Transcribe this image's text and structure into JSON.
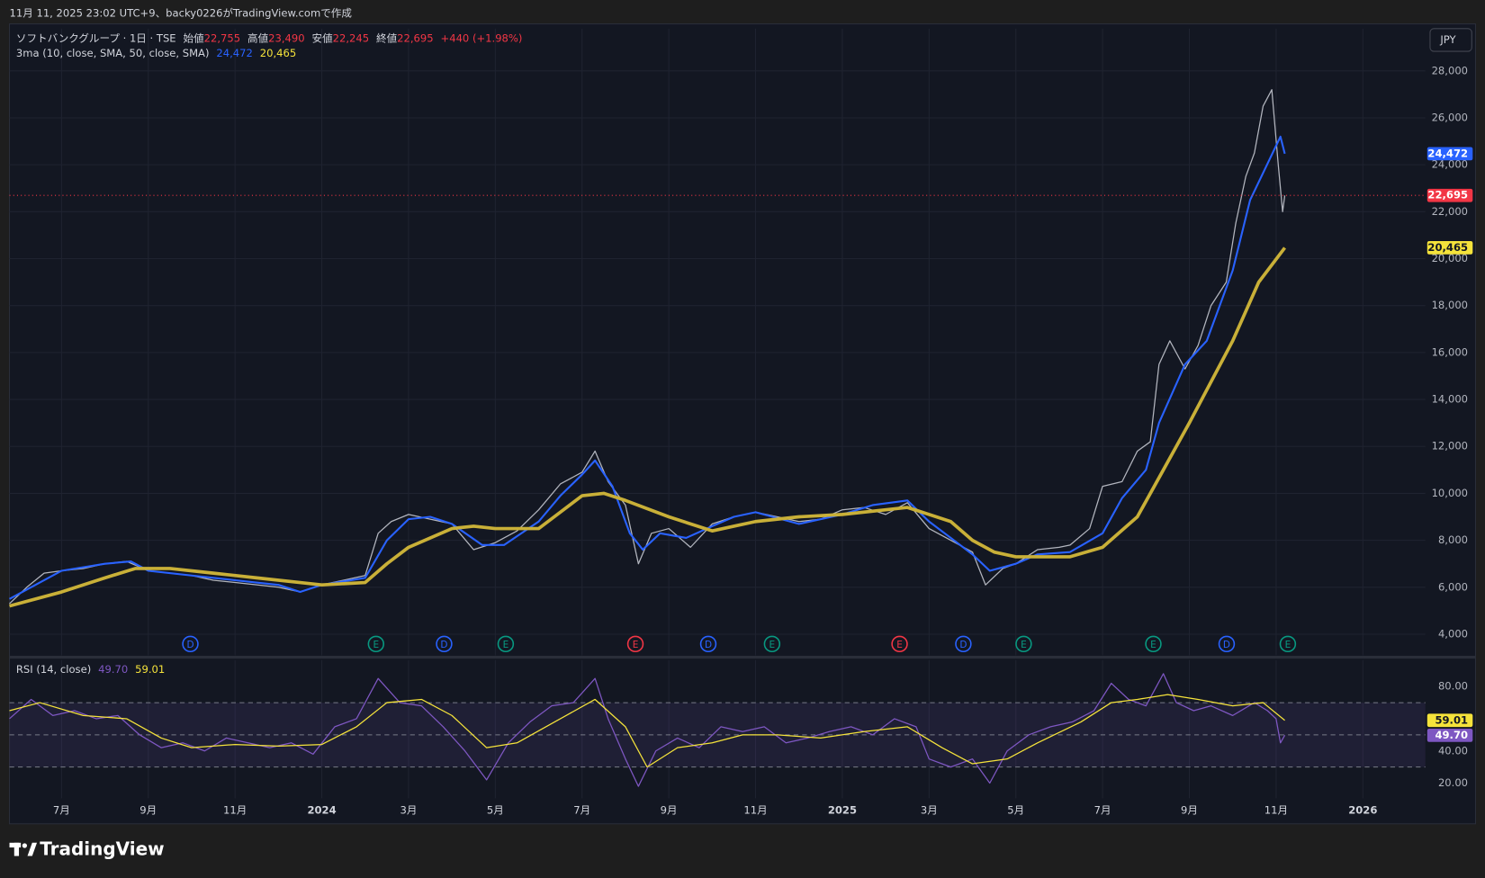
{
  "header": {
    "created": "11月 11, 2025 23:02 UTC+9、backy0226がTradingView.comで作成",
    "currency": "JPY",
    "brand": "TradingView"
  },
  "chart_data": [
    {
      "type": "line",
      "title": "ソフトバンクグループ · 1日 · TSE",
      "ohlc": [
        {
          "label": "始値",
          "value": "22,755"
        },
        {
          "label": "高値",
          "value": "23,490"
        },
        {
          "label": "安値",
          "value": "22,245"
        },
        {
          "label": "終値",
          "value": "22,695"
        }
      ],
      "change": "+440 (+1.98%)",
      "indicator": "3ma (10, close, SMA, 50, close, SMA)",
      "xlim": [
        4.8,
        37.44
      ],
      "xticks": [
        {
          "value": 6,
          "label": "7月"
        },
        {
          "value": 8,
          "label": "9月"
        },
        {
          "value": 10,
          "label": "11月"
        },
        {
          "value": 12,
          "label": "2024"
        },
        {
          "value": 14,
          "label": "3月"
        },
        {
          "value": 16,
          "label": "5月"
        },
        {
          "value": 18,
          "label": "7月"
        },
        {
          "value": 20,
          "label": "9月"
        },
        {
          "value": 22,
          "label": "11月"
        },
        {
          "value": 24,
          "label": "2025"
        },
        {
          "value": 26,
          "label": "3月"
        },
        {
          "value": 28,
          "label": "5月"
        },
        {
          "value": 30,
          "label": "7月"
        },
        {
          "value": 32,
          "label": "9月"
        },
        {
          "value": 34,
          "label": "11月"
        },
        {
          "value": 36,
          "label": "2026"
        }
      ],
      "ylim": [
        3100,
        29800
      ],
      "yticks": [
        {
          "value": 4000,
          "label": "4,000"
        },
        {
          "value": 6000,
          "label": "6,000"
        },
        {
          "value": 8000,
          "label": "8,000"
        },
        {
          "value": 10000,
          "label": "10,000"
        },
        {
          "value": 12000,
          "label": "12,000"
        },
        {
          "value": 14000,
          "label": "14,000"
        },
        {
          "value": 16000,
          "label": "16,000"
        },
        {
          "value": 18000,
          "label": "18,000"
        },
        {
          "value": 20000,
          "label": "20,000"
        },
        {
          "value": 22000,
          "label": "22,000"
        },
        {
          "value": 24000,
          "label": "24,000"
        },
        {
          "value": 26000,
          "label": "26,000"
        },
        {
          "value": 28000,
          "label": "28,000"
        }
      ],
      "grid": true,
      "series": [
        {
          "color": "#b2b5be",
          "label_color": "#f23645",
          "line_width": 1.2,
          "last_label": "22,695",
          "price_line": true,
          "x": [
            4.8,
            5.2,
            5.6,
            6.0,
            6.5,
            7.0,
            7.5,
            8.0,
            8.5,
            9.0,
            9.5,
            10.0,
            10.5,
            11.0,
            11.5,
            12.0,
            12.5,
            13.0,
            13.3,
            13.6,
            14.0,
            14.5,
            15.0,
            15.5,
            16.0,
            16.5,
            17.0,
            17.5,
            18.0,
            18.3,
            18.6,
            19.0,
            19.3,
            19.6,
            20.0,
            20.5,
            21.0,
            21.5,
            22.0,
            22.5,
            23.0,
            23.5,
            24.0,
            24.5,
            25.0,
            25.5,
            26.0,
            26.5,
            27.0,
            27.3,
            27.7,
            28.0,
            28.5,
            29.0,
            29.25,
            29.7,
            30.0,
            30.45,
            30.8,
            31.1,
            31.3,
            31.55,
            31.9,
            32.2,
            32.5,
            32.85,
            33.07,
            33.3,
            33.5,
            33.7,
            33.9,
            34.05,
            34.15,
            34.2
          ],
          "values": [
            5300,
            6000,
            6600,
            6700,
            6800,
            7000,
            7100,
            6700,
            6600,
            6500,
            6300,
            6200,
            6100,
            6000,
            5800,
            6100,
            6300,
            6500,
            8300,
            8800,
            9100,
            8900,
            8700,
            7600,
            7900,
            8400,
            9300,
            10400,
            10900,
            11800,
            10500,
            9500,
            7000,
            8300,
            8500,
            7700,
            8700,
            9000,
            9200,
            9000,
            8800,
            8900,
            9300,
            9400,
            9100,
            9600,
            8500,
            8000,
            7500,
            6100,
            6800,
            7000,
            7600,
            7700,
            7800,
            8500,
            10300,
            10500,
            11800,
            12200,
            15500,
            16500,
            15300,
            16300,
            18000,
            19000,
            21500,
            23500,
            24500,
            26500,
            27200,
            24000,
            22000,
            22695
          ]
        },
        {
          "color": "#2962ff",
          "label_color": "#2962ff",
          "line_width": 2,
          "last_label": "24,472",
          "x": [
            4.8,
            6,
            7,
            7.6,
            8,
            9,
            10,
            11,
            11.5,
            12,
            13,
            13.5,
            14,
            14.5,
            15,
            15.7,
            16.2,
            17,
            17.5,
            18,
            18.3,
            18.7,
            19.1,
            19.4,
            19.8,
            20.4,
            21,
            21.5,
            22,
            23,
            24,
            24.7,
            25.5,
            26,
            26.5,
            27,
            27.4,
            28,
            28.5,
            29.25,
            30,
            30.45,
            31,
            31.3,
            31.9,
            32.4,
            33,
            33.4,
            34.1,
            34.2
          ],
          "values": [
            5500,
            6700,
            7000,
            7100,
            6700,
            6500,
            6300,
            6100,
            5800,
            6100,
            6400,
            8000,
            8900,
            9000,
            8700,
            7800,
            7800,
            8800,
            9900,
            10800,
            11400,
            10300,
            8300,
            7600,
            8300,
            8100,
            8600,
            9000,
            9200,
            8700,
            9100,
            9500,
            9700,
            8800,
            8100,
            7400,
            6700,
            7000,
            7400,
            7500,
            8300,
            9800,
            11000,
            13000,
            15500,
            16500,
            19500,
            22500,
            25200,
            24472
          ]
        },
        {
          "color": "#c9b038",
          "label_color": "#f5e33b",
          "line_width": 3.5,
          "last_label": "20,465",
          "x": [
            4.8,
            6,
            7,
            7.7,
            8.5,
            9.5,
            10.5,
            11.5,
            12,
            13,
            13.5,
            14,
            15,
            15.5,
            16,
            17,
            17.5,
            18,
            18.5,
            19,
            20,
            21,
            21.5,
            22,
            23,
            24,
            25,
            25.5,
            26,
            26.5,
            27,
            27.5,
            28,
            29.25,
            30,
            30.8,
            31.4,
            32,
            33,
            33.6,
            34.2
          ],
          "values": [
            5200,
            5800,
            6400,
            6800,
            6800,
            6600,
            6400,
            6200,
            6100,
            6200,
            7000,
            7700,
            8500,
            8600,
            8500,
            8500,
            9200,
            9900,
            10000,
            9700,
            9000,
            8400,
            8600,
            8800,
            9000,
            9100,
            9300,
            9400,
            9100,
            8800,
            8000,
            7500,
            7300,
            7300,
            7700,
            9000,
            11000,
            13000,
            16500,
            19000,
            20465
          ]
        }
      ],
      "events": [
        {
          "x": 8.97,
          "label": "D",
          "color": "#2962ff"
        },
        {
          "x": 13.25,
          "label": "E",
          "color": "#089981"
        },
        {
          "x": 14.82,
          "label": "D",
          "color": "#2962ff"
        },
        {
          "x": 16.24,
          "label": "E",
          "color": "#089981"
        },
        {
          "x": 19.23,
          "label": "E",
          "color": "#f23645"
        },
        {
          "x": 20.91,
          "label": "D",
          "color": "#2962ff"
        },
        {
          "x": 22.38,
          "label": "E",
          "color": "#089981"
        },
        {
          "x": 25.32,
          "label": "E",
          "color": "#f23645"
        },
        {
          "x": 26.79,
          "label": "D",
          "color": "#2962ff"
        },
        {
          "x": 28.18,
          "label": "E",
          "color": "#089981"
        },
        {
          "x": 31.17,
          "label": "E",
          "color": "#089981"
        },
        {
          "x": 32.86,
          "label": "D",
          "color": "#2962ff"
        },
        {
          "x": 34.27,
          "label": "E",
          "color": "#089981"
        }
      ]
    },
    {
      "type": "line",
      "title": "RSI (14, close)",
      "xlim": [
        4.8,
        37.44
      ],
      "ylim": [
        10.6,
        96.5
      ],
      "yticks": [
        {
          "value": 20,
          "label": "20.00"
        },
        {
          "value": 40,
          "label": "40.00"
        },
        {
          "value": 80,
          "label": "80.00"
        }
      ],
      "bands": [
        30,
        50,
        70
      ],
      "series": [
        {
          "color": "#7e57c2",
          "label_color": "#7e57c2",
          "line_width": 1.2,
          "last_label": "49.70",
          "x": [
            4.8,
            5.3,
            5.8,
            6.3,
            6.8,
            7.3,
            7.8,
            8.3,
            8.8,
            9.3,
            9.8,
            10.3,
            10.8,
            11.3,
            11.8,
            12.3,
            12.8,
            13.3,
            13.8,
            14.3,
            14.8,
            15.3,
            15.8,
            16.3,
            16.8,
            17.3,
            17.8,
            18.3,
            18.6,
            19.0,
            19.3,
            19.7,
            20.2,
            20.7,
            21.2,
            21.7,
            22.2,
            22.7,
            23.2,
            23.7,
            24.2,
            24.7,
            25.2,
            25.7,
            26.0,
            26.5,
            27.0,
            27.4,
            27.8,
            28.3,
            28.8,
            29.3,
            29.8,
            30.2,
            30.6,
            31.0,
            31.4,
            31.7,
            32.1,
            32.5,
            33.0,
            33.5,
            33.8,
            34.0,
            34.1,
            34.2
          ],
          "values": [
            60,
            72,
            62,
            65,
            60,
            62,
            50,
            42,
            45,
            40,
            48,
            45,
            42,
            45,
            38,
            55,
            60,
            85,
            70,
            68,
            55,
            40,
            22,
            45,
            58,
            68,
            70,
            85,
            60,
            35,
            18,
            40,
            48,
            42,
            55,
            52,
            55,
            45,
            48,
            52,
            55,
            50,
            60,
            55,
            35,
            30,
            35,
            20,
            40,
            50,
            55,
            58,
            65,
            82,
            72,
            68,
            88,
            70,
            65,
            68,
            62,
            70,
            65,
            60,
            45,
            49.7
          ]
        },
        {
          "color": "#f5e33b",
          "label_color": "#f5e33b",
          "line_width": 1.2,
          "last_label": "59.01",
          "x": [
            4.8,
            5.5,
            6.5,
            7.5,
            8.3,
            9.0,
            10,
            11,
            12,
            12.8,
            13.5,
            14.3,
            15,
            15.8,
            16.5,
            17.5,
            18.3,
            19,
            19.5,
            20.2,
            21,
            21.7,
            22.5,
            23.5,
            24.5,
            25.5,
            26.3,
            27,
            27.8,
            28.5,
            29.5,
            30.2,
            30.8,
            31.5,
            32.2,
            33,
            33.7,
            34.2
          ],
          "values": [
            65,
            70,
            62,
            60,
            48,
            42,
            44,
            43,
            44,
            55,
            70,
            72,
            62,
            42,
            45,
            60,
            72,
            55,
            30,
            42,
            45,
            50,
            50,
            48,
            52,
            55,
            42,
            32,
            35,
            45,
            58,
            70,
            72,
            75,
            72,
            68,
            70,
            59.01
          ]
        }
      ]
    }
  ]
}
